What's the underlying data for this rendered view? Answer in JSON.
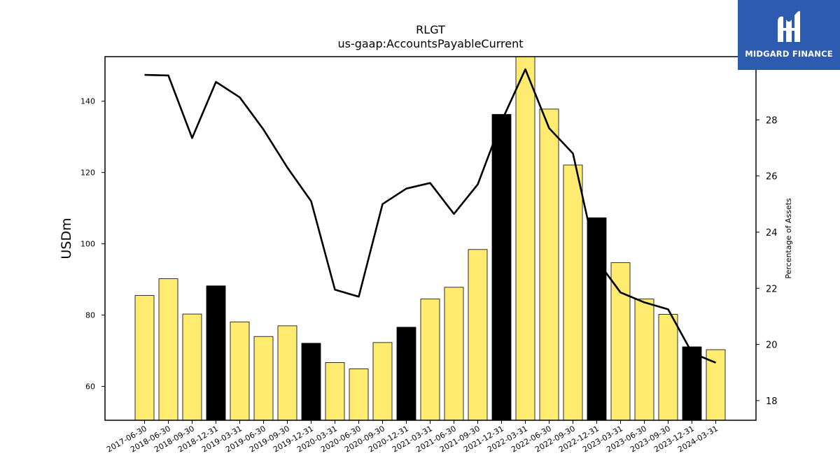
{
  "chart_data": {
    "type": "bar",
    "title": "RLGT",
    "subtitle": "us-gaap:AccountsPayableCurrent",
    "ylabel": "USDm",
    "y2label": "Percentage of Assets",
    "ylim": [
      50.5,
      152.5
    ],
    "y2lim": [
      17.3,
      30.25
    ],
    "yticks": [
      60,
      80,
      100,
      120,
      140
    ],
    "y2ticks": [
      18,
      20,
      22,
      24,
      26,
      28
    ],
    "categories": [
      "2017-06-30",
      "2018-06-30",
      "2018-09-30",
      "2018-12-31",
      "2019-03-31",
      "2019-06-30",
      "2019-09-30",
      "2019-12-31",
      "2020-03-31",
      "2020-06-30",
      "2020-09-30",
      "2020-12-31",
      "2021-03-31",
      "2021-06-30",
      "2021-09-30",
      "2021-12-31",
      "2022-03-31",
      "2022-06-30",
      "2022-09-30",
      "2022-12-31",
      "2023-03-31",
      "2023-06-30",
      "2023-09-30",
      "2023-12-31",
      "2024-03-31"
    ],
    "series": [
      {
        "type": "bar",
        "values": [
          85.5,
          90.2,
          80.3,
          88.2,
          78.1,
          74.0,
          77.0,
          72.1,
          66.7,
          64.9,
          72.3,
          76.6,
          84.5,
          87.8,
          98.4,
          136.3,
          153.0,
          137.8,
          122.1,
          107.3,
          94.7,
          84.5,
          80.2,
          71.1,
          70.3
        ],
        "colors": [
          "#ffeb70",
          "#ffeb70",
          "#ffeb70",
          "#000000",
          "#ffeb70",
          "#ffeb70",
          "#ffeb70",
          "#000000",
          "#ffeb70",
          "#ffeb70",
          "#ffeb70",
          "#000000",
          "#ffeb70",
          "#ffeb70",
          "#ffeb70",
          "#000000",
          "#ffeb70",
          "#ffeb70",
          "#ffeb70",
          "#000000",
          "#ffeb70",
          "#ffeb70",
          "#ffeb70",
          "#000000",
          "#ffeb70"
        ]
      },
      {
        "type": "line",
        "axis": "right",
        "values": [
          29.6,
          29.58,
          27.35,
          29.35,
          28.8,
          27.65,
          26.3,
          25.1,
          21.95,
          21.7,
          25.0,
          25.55,
          25.75,
          24.65,
          25.7,
          27.95,
          29.8,
          27.7,
          26.8,
          23.0,
          21.85,
          21.5,
          21.25,
          19.7,
          19.35
        ]
      }
    ],
    "colors": {
      "bar_light": "#ffeb70",
      "bar_dark": "#000000",
      "line": "#000000"
    },
    "grid": false
  },
  "logo": {
    "text": "MIDGARD FINANCE",
    "bg": "#2d5bb0"
  }
}
